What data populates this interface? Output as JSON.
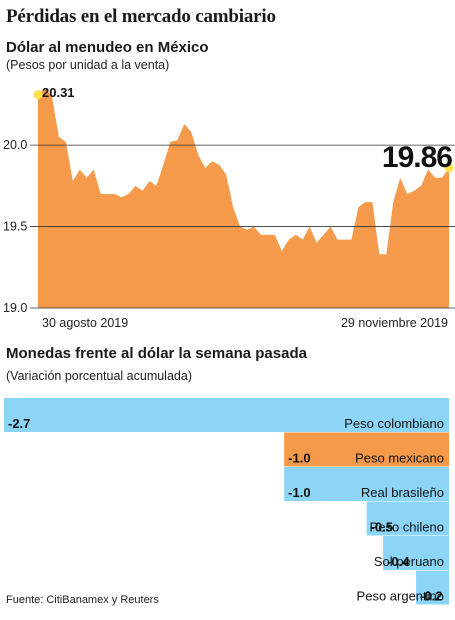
{
  "title": "Pérdidas en el mercado cambiario",
  "colors": {
    "area": "#F59A4A",
    "bar": "#8DD5F7",
    "highlight": "#F59A4A",
    "marker": "#FFE14D"
  },
  "chart_data": [
    {
      "type": "area",
      "title": "Dólar al menudeo en México",
      "subtitle": "(Pesos por unidad a la venta)",
      "ylim": [
        19.0,
        20.4
      ],
      "yticks": [
        "19.0",
        "19.5",
        "20.0"
      ],
      "xticks": [
        "30 agosto 2019",
        "29 noviembre 2019"
      ],
      "grid": true,
      "first_label": "20.31",
      "last_label": "19.86",
      "values": [
        20.31,
        20.35,
        20.3,
        20.05,
        20.02,
        19.78,
        19.85,
        19.8,
        19.85,
        19.7,
        19.7,
        19.7,
        19.68,
        19.7,
        19.75,
        19.72,
        19.78,
        19.75,
        19.88,
        20.02,
        20.03,
        20.13,
        20.08,
        19.94,
        19.86,
        19.9,
        19.88,
        19.82,
        19.62,
        19.5,
        19.48,
        19.5,
        19.45,
        19.45,
        19.45,
        19.35,
        19.42,
        19.45,
        19.42,
        19.5,
        19.4,
        19.45,
        19.5,
        19.42,
        19.42,
        19.42,
        19.62,
        19.65,
        19.65,
        19.33,
        19.33,
        19.65,
        19.8,
        19.7,
        19.72,
        19.75,
        19.85,
        19.8,
        19.8,
        19.86
      ]
    },
    {
      "type": "bar",
      "title": "Monedas frente al dólar la semana pasada",
      "subtitle": "(Variación porcentual acumulada)",
      "categories": [
        "Peso colombiano",
        "Peso mexicano",
        "Real brasileño",
        "Peso chileno",
        "Sol peruano",
        "Peso argentino"
      ],
      "values": [
        -2.7,
        -1.0,
        -1.0,
        -0.5,
        -0.4,
        -0.2
      ],
      "value_labels": [
        "-2.7",
        "-1.0",
        "-1.0",
        "-0.5",
        "-0.4",
        "-0.2"
      ],
      "highlight": "Peso mexicano"
    }
  ],
  "source": "Fuente: CitiBanamex y Reuters"
}
